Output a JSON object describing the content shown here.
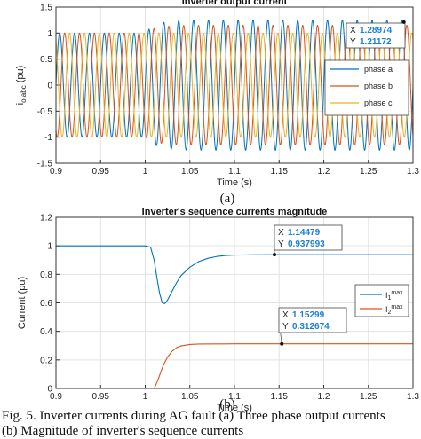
{
  "figure": {
    "caption": "Fig. 5. Inverter currents during AG fault (a) Three phase output currents",
    "caption_cont": "(b) Magnitude of inverter's sequence currents"
  },
  "chart_data": [
    {
      "type": "line",
      "subfigure_label": "(a)",
      "title": "Inverter output current",
      "xlabel": "Time (s)",
      "ylabel": "i",
      "ylabel_sub": "o,abc",
      "ylabel_unit": " (pu)",
      "xlim": [
        0.9,
        1.3
      ],
      "ylim": [
        -1.5,
        1.5
      ],
      "xticks": [
        0.9,
        0.95,
        1,
        1.05,
        1.1,
        1.15,
        1.2,
        1.25,
        1.3
      ],
      "xtick_labels": [
        "0.9",
        "0.95",
        "1",
        "1.05",
        "1.1",
        "1.15",
        "1.2",
        "1.25",
        "1.3"
      ],
      "yticks": [
        1.5,
        1,
        0.5,
        0,
        -0.5,
        -1,
        -1.5
      ],
      "ytick_labels": [
        "1.5",
        "1",
        "0.5",
        "0",
        "-0.5",
        "-1",
        "-1.5"
      ],
      "grid": true,
      "legend_position": "right",
      "waveform": {
        "frequency_hz": 60,
        "fault_time": 1.0,
        "pre_fault_amplitude": 1.0,
        "post_fault_amplitudes": [
          1.25,
          1.15,
          1.0
        ]
      },
      "series": [
        {
          "name": "phase a",
          "color": "#0072BD"
        },
        {
          "name": "phase b",
          "color": "#D95319"
        },
        {
          "name": "phase c",
          "color": "#EDB120"
        }
      ],
      "datatip": {
        "x": 1.28974,
        "y": 1.21172,
        "x_text": "1.28974",
        "y_text": "1.21172"
      }
    },
    {
      "type": "line",
      "subfigure_label": "(b)",
      "title": "Inverter's sequence currents magnitude",
      "xlabel": "Time (s)",
      "ylabel": "Current (pu)",
      "xlim": [
        0.9,
        1.3
      ],
      "ylim": [
        0,
        1.2
      ],
      "xticks": [
        0.9,
        0.95,
        1,
        1.05,
        1.1,
        1.15,
        1.2,
        1.25,
        1.3
      ],
      "xtick_labels": [
        "0.9",
        "0.95",
        "1",
        "1.05",
        "1.1",
        "1.15",
        "1.2",
        "1.25",
        "1.3"
      ],
      "yticks": [
        1.2,
        1,
        0.8,
        0.6,
        0.4,
        0.2,
        0
      ],
      "ytick_labels": [
        "1.2",
        "1",
        "0.8",
        "0.6",
        "0.4",
        "0.2",
        "0"
      ],
      "grid": true,
      "legend_position": "right",
      "series": [
        {
          "name_base": "I",
          "name_sub": "1",
          "name_sup": "max",
          "color": "#0072BD",
          "x": [
            0.9,
            1.0,
            1.006,
            1.01,
            1.013,
            1.016,
            1.019,
            1.022,
            1.025,
            1.03,
            1.035,
            1.04,
            1.05,
            1.06,
            1.07,
            1.08,
            1.09,
            1.1,
            1.12,
            1.15,
            1.2,
            1.25,
            1.3
          ],
          "y": [
            1.0,
            1.0,
            0.99,
            0.9,
            0.78,
            0.67,
            0.6,
            0.595,
            0.62,
            0.68,
            0.74,
            0.79,
            0.85,
            0.89,
            0.912,
            0.925,
            0.932,
            0.935,
            0.937,
            0.938,
            0.938,
            0.938,
            0.938
          ]
        },
        {
          "name_base": "I",
          "name_sub": "2",
          "name_sup": "max",
          "color": "#D95319",
          "x": [
            0.9,
            1.01,
            1.013,
            1.016,
            1.02,
            1.025,
            1.03,
            1.035,
            1.04,
            1.05,
            1.06,
            1.08,
            1.1,
            1.15,
            1.2,
            1.25,
            1.3
          ],
          "y": [
            0,
            0,
            0.04,
            0.09,
            0.16,
            0.22,
            0.26,
            0.285,
            0.298,
            0.308,
            0.311,
            0.312,
            0.3126,
            0.3127,
            0.3127,
            0.3127,
            0.3127
          ]
        }
      ],
      "datatips": [
        {
          "x": 1.14479,
          "y": 0.937993,
          "x_text": "1.14479",
          "y_text": "0.937993"
        },
        {
          "x": 1.15299,
          "y": 0.312674,
          "x_text": "1.15299",
          "y_text": "0.312674"
        }
      ]
    }
  ]
}
